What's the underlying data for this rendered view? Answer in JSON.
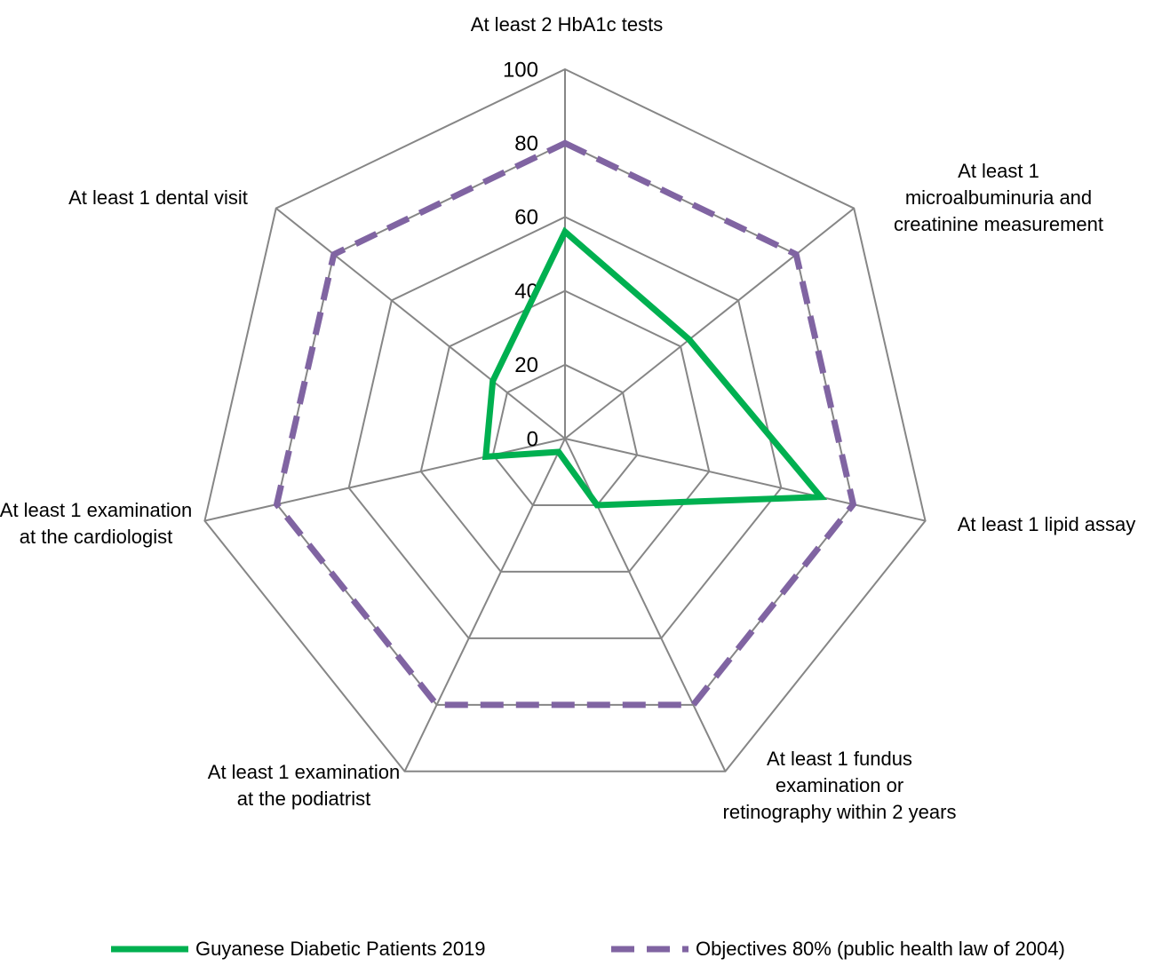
{
  "chart_data": {
    "type": "radar",
    "categories": [
      "At least 2 HbA1c tests",
      "At least 1 microalbuminuria and creatinine measurement",
      "At least 1 lipid assay",
      "At least 1 fundus examination or retinography within 2 years",
      "At least 1 examination at the podiatrist",
      "At least 1 examination at the cardiologist",
      "At least 1 dental visit"
    ],
    "series": [
      {
        "name": "Guyanese Diabetic Patients 2019",
        "color": "#00b050",
        "dashed": false,
        "values": [
          56,
          43,
          71,
          20,
          4,
          22,
          25
        ]
      },
      {
        "name": "Objectives 80% (public health law of 2004)",
        "color": "#8064a2",
        "dashed": true,
        "values": [
          80,
          80,
          80,
          80,
          80,
          80,
          80
        ]
      }
    ],
    "rlim": [
      0,
      100
    ],
    "rticks": [
      0,
      20,
      40,
      60,
      80,
      100
    ],
    "grid": true
  }
}
